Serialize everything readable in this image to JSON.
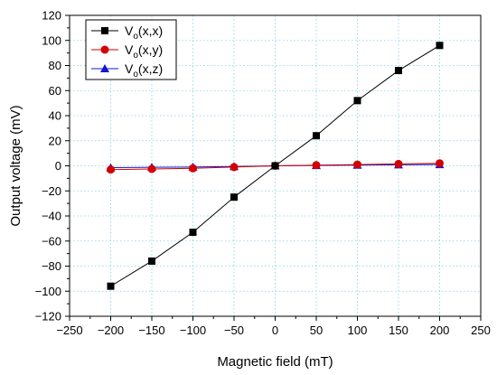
{
  "chart_data": {
    "type": "line",
    "xlabel": "Magnetic field (mT)",
    "ylabel": "Output voltage (mV)",
    "xlim": [
      -250,
      250
    ],
    "ylim": [
      -120,
      120
    ],
    "x_ticks": [
      -250,
      -200,
      -150,
      -100,
      -50,
      0,
      50,
      100,
      150,
      200,
      250
    ],
    "y_ticks": [
      -120,
      -100,
      -80,
      -60,
      -40,
      -20,
      0,
      20,
      40,
      60,
      80,
      100,
      120
    ],
    "x_tick_labels": [
      "−250",
      "−200",
      "−150",
      "−100",
      "−50",
      "0",
      "50",
      "100",
      "150",
      "200",
      "250"
    ],
    "y_tick_labels": [
      "−120",
      "−100",
      "−80",
      "−60",
      "−40",
      "−20",
      "0",
      "20",
      "40",
      "60",
      "80",
      "100",
      "120"
    ],
    "grid": true,
    "legend_position": "top-left",
    "x": [
      -200,
      -150,
      -100,
      -50,
      0,
      50,
      100,
      150,
      200
    ],
    "series": [
      {
        "name": "V",
        "subscript": "o",
        "suffix": "(x,x)",
        "marker": "square",
        "color": "#000000",
        "values": [
          -96,
          -76,
          -53,
          -25,
          0,
          24,
          52,
          76,
          96
        ]
      },
      {
        "name": "V",
        "subscript": "o",
        "suffix": "(x,y)",
        "marker": "circle",
        "color": "#d40000",
        "values": [
          -3,
          -2.5,
          -2,
          -1,
          0,
          0.5,
          1,
          1.5,
          2
        ]
      },
      {
        "name": "V",
        "subscript": "o",
        "suffix": "(x,z)",
        "marker": "triangle",
        "color": "#1414d4",
        "values": [
          -1.5,
          -1.2,
          -1,
          -0.5,
          0,
          0.3,
          0.5,
          0.8,
          1
        ]
      }
    ]
  }
}
